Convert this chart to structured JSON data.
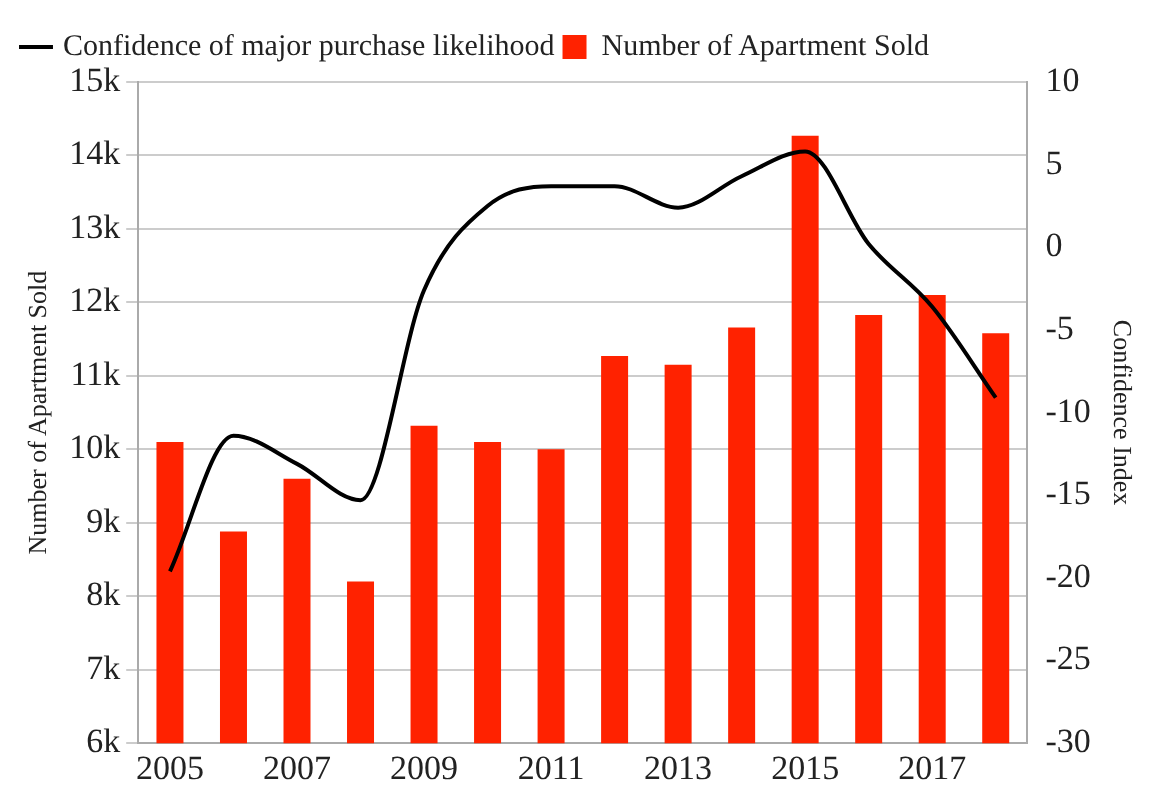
{
  "chart_data": {
    "type": "bar",
    "categories": [
      "2005",
      null,
      "2007",
      null,
      "2009",
      null,
      "2011",
      null,
      "2013",
      null,
      "2015",
      null,
      "2017",
      null
    ],
    "series": [
      {
        "name": "Confidence of major purchase likelihood",
        "type": "line",
        "axis": "y2",
        "color": "#000000",
        "values": [
          -19.6,
          -11.4,
          -13.1,
          -15.3,
          -2.6,
          2.5,
          3.7,
          3.7,
          2.4,
          4.3,
          5.8,
          0.2,
          -3.6,
          -9.1
        ]
      },
      {
        "name": "Number of Apartment Sold",
        "color": "#ff2200",
        "values": [
          10100,
          8880,
          9600,
          8200,
          10320,
          10100,
          10000,
          11270,
          11150,
          11660,
          14270,
          11830,
          12100,
          11580
        ]
      }
    ],
    "ylabel": "Number of Apartment Sold",
    "y2label": "Confidence Index",
    "ylim": [
      6000,
      15000
    ],
    "yticks": [
      {
        "value": 6000,
        "label": "6k"
      },
      {
        "value": 7000,
        "label": "7k"
      },
      {
        "value": 8000,
        "label": "8k"
      },
      {
        "value": 9000,
        "label": "9k"
      },
      {
        "value": 10000,
        "label": "10k"
      },
      {
        "value": 11000,
        "label": "11k"
      },
      {
        "value": 12000,
        "label": "12k"
      },
      {
        "value": 13000,
        "label": "13k"
      },
      {
        "value": 14000,
        "label": "14k"
      },
      {
        "value": 15000,
        "label": "15k"
      }
    ],
    "y2lim": [
      -30,
      10
    ],
    "y2ticks": [
      -30,
      -25,
      -20,
      -15,
      -10,
      -5,
      0,
      5,
      10
    ],
    "grid": "y",
    "legend": "top left"
  }
}
